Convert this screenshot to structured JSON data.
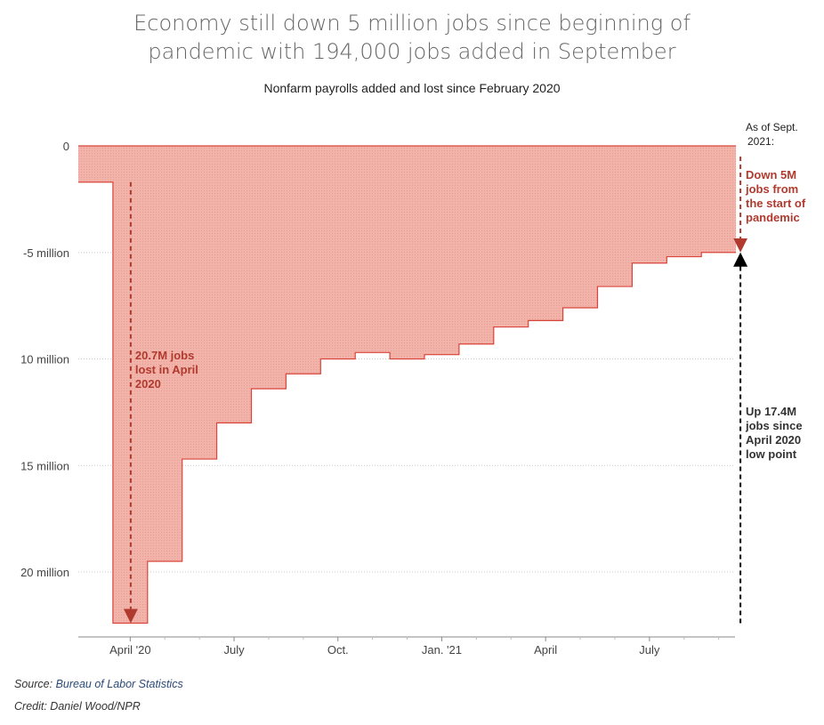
{
  "title_line1": "Economy still down 5 million jobs since beginning of",
  "title_line2": "pandemic with 194,000 jobs added in September",
  "subtitle": "Nonfarm payrolls added and lost since February 2020",
  "footer": {
    "source_prefix": "Source: ",
    "source_link": "Bureau of Labor Statistics",
    "credit": "Credit: Daniel Wood/NPR"
  },
  "colors": {
    "fill": "#f2b3aa",
    "line": "#d9453a",
    "annotation_red": "#b03a2e",
    "annotation_black": "#000000",
    "grid": "#cccccc"
  },
  "chart_data": {
    "type": "area",
    "step": true,
    "title": "Economy still down 5 million jobs since beginning of pandemic with 194,000 jobs added in September",
    "subtitle": "Nonfarm payrolls added and lost since February 2020",
    "xlabel": "",
    "ylabel": "",
    "ylim": [
      -22.4,
      0
    ],
    "grid": true,
    "x": [
      "Mar 2020",
      "Apr 2020",
      "May 2020",
      "Jun 2020",
      "Jul 2020",
      "Aug 2020",
      "Sep 2020",
      "Oct 2020",
      "Nov 2020",
      "Dec 2020",
      "Jan 2021",
      "Feb 2021",
      "Mar 2021",
      "Apr 2021",
      "May 2021",
      "Jun 2021",
      "Jul 2021",
      "Aug 2021",
      "Sep 2021"
    ],
    "values": [
      -1.7,
      -22.4,
      -19.5,
      -14.7,
      -13.0,
      -11.4,
      -10.7,
      -10.0,
      -9.7,
      -10.0,
      -9.8,
      -9.3,
      -8.5,
      -8.2,
      -7.6,
      -6.6,
      -5.5,
      -5.2,
      -5.0
    ],
    "y_ticks": [
      {
        "value": 0,
        "label": "0"
      },
      {
        "value": -5,
        "label": "-5 million"
      },
      {
        "value": -10,
        "label": "10 million"
      },
      {
        "value": -15,
        "label": "15 million"
      },
      {
        "value": -20,
        "label": "20 million"
      }
    ],
    "x_ticks": [
      {
        "label": "April '20"
      },
      {
        "label": "July"
      },
      {
        "label": "Oct."
      },
      {
        "label": "Jan. '21"
      },
      {
        "label": "April"
      },
      {
        "label": "July"
      }
    ],
    "annotations": {
      "as_of_line1": "As of Sept.",
      "as_of_line2": "2021:",
      "down_lines": [
        "Down 5M",
        "jobs from",
        "the start of",
        "pandemic"
      ],
      "lost_lines": [
        "20.7M jobs",
        "lost in April",
        "2020"
      ],
      "up_lines": [
        "Up 17.4M",
        "jobs since",
        "April 2020",
        "low point"
      ]
    }
  }
}
